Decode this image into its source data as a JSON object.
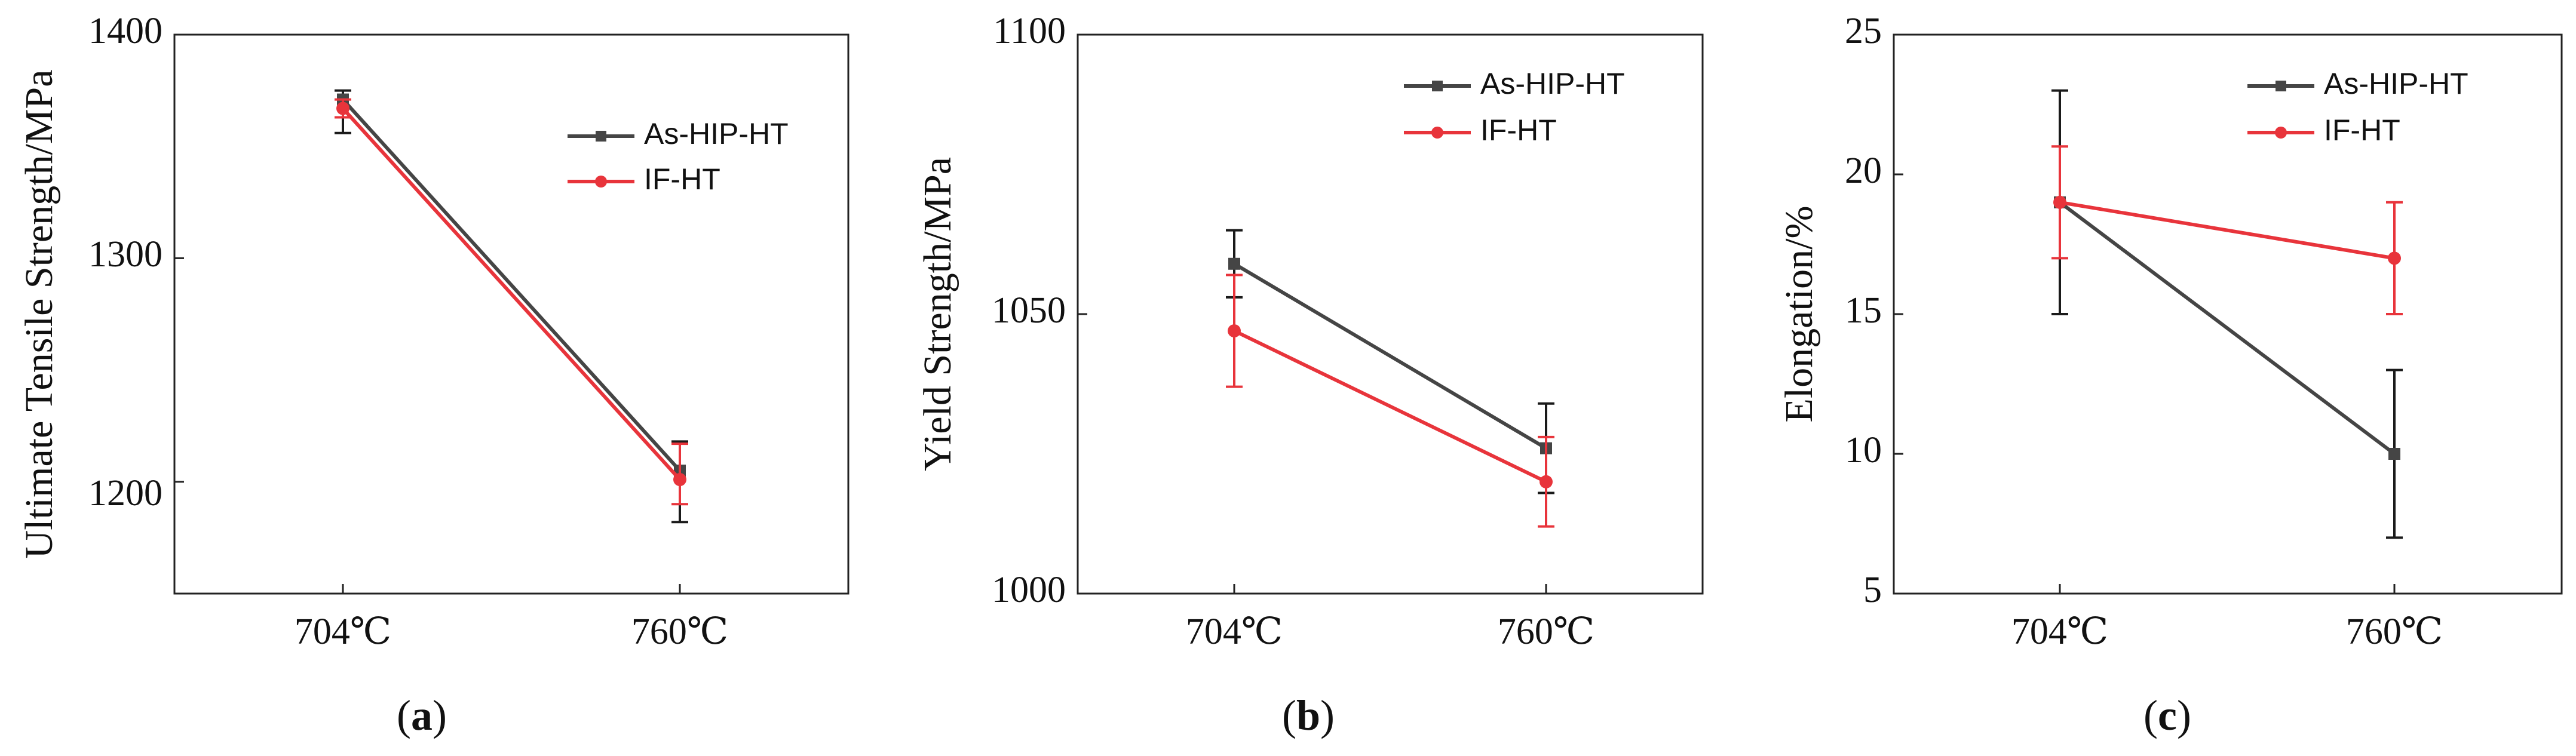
{
  "series_colors": {
    "As-HIP-HT": "#454545",
    "IF-HT": "#e8343b"
  },
  "chart_data": [
    {
      "type": "line",
      "panel_label": "a",
      "categories": [
        "704℃",
        "760℃"
      ],
      "ylabel": "Ultimate Tensile Strength/MPa",
      "ylim": [
        1150,
        1400
      ],
      "yticks": [
        1200,
        1300,
        1400
      ],
      "ytick_labels": [
        "1200",
        "1300",
        "1400"
      ],
      "legend_position": "top-right",
      "series": [
        {
          "name": "As-HIP-HT",
          "marker": "square",
          "color": "#454545",
          "values": [
            1371,
            1205
          ],
          "errors": [
            [
              1356,
              1375
            ],
            [
              1182,
              1218
            ]
          ]
        },
        {
          "name": "IF-HT",
          "marker": "circle",
          "color": "#e8343b",
          "values": [
            1367,
            1201
          ],
          "errors": [
            [
              1363,
              1371
            ],
            [
              1190,
              1217
            ]
          ]
        }
      ]
    },
    {
      "type": "line",
      "panel_label": "b",
      "categories": [
        "704℃",
        "760℃"
      ],
      "ylabel": "Yield Strength/MPa",
      "ylim": [
        1000,
        1100
      ],
      "yticks": [
        1000,
        1050,
        1100
      ],
      "ytick_labels": [
        "1000",
        "1050",
        "1100"
      ],
      "legend_position": "top-right",
      "series": [
        {
          "name": "As-HIP-HT",
          "marker": "square",
          "color": "#454545",
          "values": [
            1059,
            1026
          ],
          "errors": [
            [
              1053,
              1065
            ],
            [
              1018,
              1034
            ]
          ]
        },
        {
          "name": "IF-HT",
          "marker": "circle",
          "color": "#e8343b",
          "values": [
            1047,
            1020
          ],
          "errors": [
            [
              1037,
              1057
            ],
            [
              1012,
              1028
            ]
          ]
        }
      ]
    },
    {
      "type": "line",
      "panel_label": "c",
      "categories": [
        "704℃",
        "760℃"
      ],
      "ylabel": "Elongation/%",
      "ylim": [
        5,
        25
      ],
      "yticks": [
        5,
        10,
        15,
        20,
        25
      ],
      "ytick_labels": [
        "5",
        "10",
        "15",
        "20",
        "25"
      ],
      "legend_position": "top-right",
      "series": [
        {
          "name": "As-HIP-HT",
          "marker": "square",
          "color": "#454545",
          "values": [
            19,
            10
          ],
          "errors": [
            [
              15,
              23
            ],
            [
              7,
              13
            ]
          ]
        },
        {
          "name": "IF-HT",
          "marker": "circle",
          "color": "#e8343b",
          "values": [
            19,
            17
          ],
          "errors": [
            [
              17,
              21
            ],
            [
              15,
              19
            ]
          ]
        }
      ]
    }
  ]
}
